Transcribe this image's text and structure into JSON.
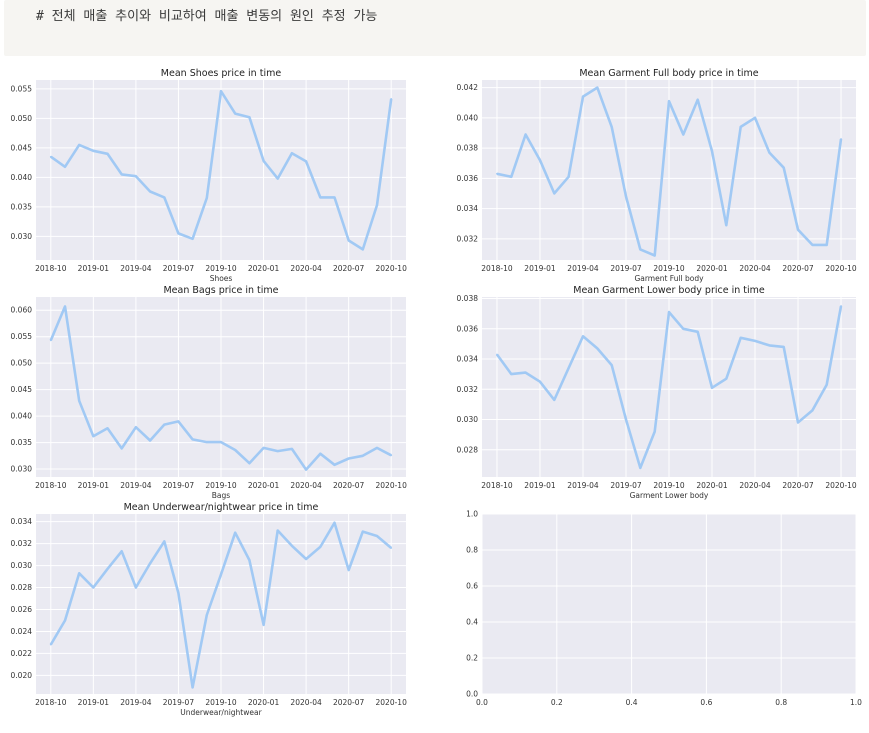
{
  "markdown": {
    "text": "# 전체 매출 추이와 비교하여 매출 변동의 원인 추정 가능"
  },
  "colors": {
    "line": "#a1c9f4",
    "plot_bg": "#eaeaf2",
    "grid": "#ffffff"
  },
  "chart_data": [
    {
      "type": "line",
      "title": "Mean Shoes price in time",
      "xlabel": "Shoes",
      "x_ticks": [
        "2018-10",
        "2019-01",
        "2019-04",
        "2019-07",
        "2019-10",
        "2020-01",
        "2020-04",
        "2020-07",
        "2020-10"
      ],
      "y_ticks": [
        "0.030",
        "0.035",
        "0.040",
        "0.045",
        "0.050",
        "0.055"
      ],
      "ylim": [
        0.026,
        0.0565
      ],
      "values": [
        0.0435,
        0.0418,
        0.0455,
        0.0445,
        0.044,
        0.0405,
        0.0402,
        0.0376,
        0.0366,
        0.0305,
        0.0296,
        0.0365,
        0.0546,
        0.0508,
        0.0502,
        0.0428,
        0.0398,
        0.0441,
        0.0427,
        0.0366,
        0.0366,
        0.0293,
        0.0278,
        0.0353,
        0.0533
      ]
    },
    {
      "type": "line",
      "title": "Mean Garment Full body price in time",
      "xlabel": "Garment Full body",
      "x_ticks": [
        "2018-10",
        "2019-01",
        "2019-04",
        "2019-07",
        "2019-10",
        "2020-01",
        "2020-04",
        "2020-07",
        "2020-10"
      ],
      "y_ticks": [
        "0.032",
        "0.034",
        "0.036",
        "0.038",
        "0.040",
        "0.042"
      ],
      "ylim": [
        0.0306,
        0.0425
      ],
      "values": [
        0.0363,
        0.0361,
        0.0389,
        0.0372,
        0.035,
        0.0361,
        0.0414,
        0.042,
        0.0394,
        0.0348,
        0.0313,
        0.0309,
        0.0411,
        0.0389,
        0.0412,
        0.0378,
        0.0329,
        0.0394,
        0.04,
        0.0377,
        0.0367,
        0.0326,
        0.0316,
        0.0316,
        0.0386
      ]
    },
    {
      "type": "line",
      "title": "Mean Bags price in time",
      "xlabel": "Bags",
      "x_ticks": [
        "2018-10",
        "2019-01",
        "2019-04",
        "2019-07",
        "2019-10",
        "2020-01",
        "2020-04",
        "2020-07",
        "2020-10"
      ],
      "y_ticks": [
        "0.030",
        "0.035",
        "0.040",
        "0.045",
        "0.050",
        "0.055",
        "0.060"
      ],
      "ylim": [
        0.0285,
        0.0625
      ],
      "values": [
        0.0543,
        0.0607,
        0.0429,
        0.0362,
        0.0377,
        0.0339,
        0.0379,
        0.0354,
        0.0384,
        0.039,
        0.0356,
        0.0351,
        0.0351,
        0.0336,
        0.0311,
        0.034,
        0.0334,
        0.0338,
        0.0299,
        0.0329,
        0.0308,
        0.032,
        0.0325,
        0.034,
        0.0326
      ]
    },
    {
      "type": "line",
      "title": "Mean Garment Lower body price in time",
      "xlabel": "Garment Lower body",
      "x_ticks": [
        "2018-10",
        "2019-01",
        "2019-04",
        "2019-07",
        "2019-10",
        "2020-01",
        "2020-04",
        "2020-07",
        "2020-10"
      ],
      "y_ticks": [
        "0.028",
        "0.030",
        "0.032",
        "0.034",
        "0.036",
        "0.038"
      ],
      "ylim": [
        0.0262,
        0.0381
      ],
      "values": [
        0.0343,
        0.033,
        0.0331,
        0.0325,
        0.0313,
        0.0334,
        0.0355,
        0.0347,
        0.0336,
        0.03,
        0.0268,
        0.0292,
        0.0371,
        0.036,
        0.0358,
        0.0321,
        0.0327,
        0.0354,
        0.0352,
        0.0349,
        0.0348,
        0.0298,
        0.0306,
        0.0323,
        0.0375
      ]
    },
    {
      "type": "line",
      "title": "Mean Underwear/nightwear price in time",
      "xlabel": "Underwear/nightwear",
      "x_ticks": [
        "2018-10",
        "2019-01",
        "2019-04",
        "2019-07",
        "2019-10",
        "2020-01",
        "2020-04",
        "2020-07",
        "2020-10"
      ],
      "y_ticks": [
        "0.020",
        "0.022",
        "0.024",
        "0.026",
        "0.028",
        "0.030",
        "0.032",
        "0.034"
      ],
      "ylim": [
        0.0183,
        0.0347
      ],
      "values": [
        0.0228,
        0.025,
        0.0293,
        0.028,
        0.0297,
        0.0313,
        0.028,
        0.0302,
        0.0322,
        0.0275,
        0.0189,
        0.0255,
        0.0292,
        0.033,
        0.0305,
        0.0246,
        0.0332,
        0.0318,
        0.0306,
        0.0317,
        0.0339,
        0.0296,
        0.0331,
        0.0327,
        0.0316
      ]
    },
    {
      "type": "line",
      "title": "",
      "xlabel": "",
      "x_ticks": [
        "0.0",
        "0.2",
        "0.4",
        "0.6",
        "0.8",
        "1.0"
      ],
      "y_ticks": [
        "0.0",
        "0.2",
        "0.4",
        "0.6",
        "0.8",
        "1.0"
      ],
      "xlim": [
        0,
        1
      ],
      "ylim": [
        0,
        1
      ],
      "values": []
    }
  ]
}
